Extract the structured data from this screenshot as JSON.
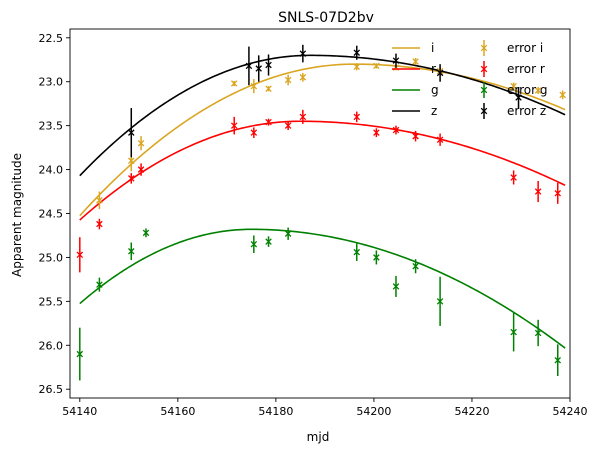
{
  "chart_data": {
    "type": "scatter",
    "title": "SNLS-07D2bv",
    "xlabel": "mjd",
    "ylabel": "Apparent magnitude",
    "xlim": [
      54138,
      54240
    ],
    "ylim": [
      26.6,
      22.4
    ],
    "y_inverted": true,
    "x_ticks": [
      54140,
      54160,
      54180,
      54200,
      54220,
      54240
    ],
    "y_ticks": [
      22.5,
      23.0,
      23.5,
      24.0,
      24.5,
      25.0,
      25.5,
      26.0,
      26.5
    ],
    "grid": false,
    "legend_position": "top-right",
    "legend_columns": 2,
    "fit_curves": [
      {
        "name": "i",
        "color": "#daa520",
        "xmin": 54140,
        "xmax": 54239,
        "peak_x": 54196,
        "peak_y": 22.8,
        "rise_k": 0.00055,
        "fall_k": 0.00028
      },
      {
        "name": "r",
        "color": "#ff0000",
        "xmin": 54140,
        "xmax": 54239,
        "peak_x": 54185,
        "peak_y": 23.45,
        "rise_k": 0.000555,
        "fall_k": 0.00025
      },
      {
        "name": "g",
        "color": "#008000",
        "xmin": 54140,
        "xmax": 54239,
        "peak_x": 54175,
        "peak_y": 24.68,
        "rise_k": 0.00069,
        "fall_k": 0.00033
      },
      {
        "name": "z",
        "color": "#000000",
        "xmin": 54140,
        "xmax": 54239,
        "peak_x": 54187,
        "peak_y": 22.7,
        "rise_k": 0.00062,
        "fall_k": 0.00025
      }
    ],
    "series": [
      {
        "name": "error i",
        "color": "#daa520",
        "points": [
          {
            "x": 54144,
            "y": 24.35,
            "err": 0.1
          },
          {
            "x": 54150.5,
            "y": 23.9,
            "err": 0.12
          },
          {
            "x": 54152.5,
            "y": 23.7,
            "err": 0.08
          },
          {
            "x": 54171.5,
            "y": 23.02,
            "err": 0.03
          },
          {
            "x": 54175.5,
            "y": 23.05,
            "err": 0.08
          },
          {
            "x": 54178.5,
            "y": 23.08,
            "err": 0.03
          },
          {
            "x": 54182.5,
            "y": 22.98,
            "err": 0.06
          },
          {
            "x": 54185.5,
            "y": 22.95,
            "err": 0.05
          },
          {
            "x": 54196.5,
            "y": 22.83,
            "err": 0.04
          },
          {
            "x": 54200.5,
            "y": 22.82,
            "err": 0.03
          },
          {
            "x": 54204.5,
            "y": 22.84,
            "err": 0.03
          },
          {
            "x": 54208.5,
            "y": 22.77,
            "err": 0.04
          },
          {
            "x": 54213.5,
            "y": 22.88,
            "err": 0.05
          },
          {
            "x": 54228.5,
            "y": 23.05,
            "err": 0.04
          },
          {
            "x": 54233.5,
            "y": 23.1,
            "err": 0.04
          },
          {
            "x": 54238.5,
            "y": 23.15,
            "err": 0.05
          }
        ]
      },
      {
        "name": "error r",
        "color": "#ff0000",
        "points": [
          {
            "x": 54140,
            "y": 24.97,
            "err": 0.2
          },
          {
            "x": 54144,
            "y": 24.62,
            "err": 0.06
          },
          {
            "x": 54150.5,
            "y": 24.1,
            "err": 0.06
          },
          {
            "x": 54152.5,
            "y": 24.0,
            "err": 0.07
          },
          {
            "x": 54171.5,
            "y": 23.5,
            "err": 0.1
          },
          {
            "x": 54175.5,
            "y": 23.58,
            "err": 0.06
          },
          {
            "x": 54178.5,
            "y": 23.46,
            "err": 0.04
          },
          {
            "x": 54182.5,
            "y": 23.5,
            "err": 0.05
          },
          {
            "x": 54185.5,
            "y": 23.4,
            "err": 0.08
          },
          {
            "x": 54196.5,
            "y": 23.4,
            "err": 0.06
          },
          {
            "x": 54200.5,
            "y": 23.58,
            "err": 0.05
          },
          {
            "x": 54204.5,
            "y": 23.55,
            "err": 0.05
          },
          {
            "x": 54208.5,
            "y": 23.62,
            "err": 0.06
          },
          {
            "x": 54213.5,
            "y": 23.66,
            "err": 0.07
          },
          {
            "x": 54228.5,
            "y": 24.09,
            "err": 0.08
          },
          {
            "x": 54233.5,
            "y": 24.25,
            "err": 0.12
          },
          {
            "x": 54237.5,
            "y": 24.27,
            "err": 0.12
          }
        ]
      },
      {
        "name": "error g",
        "color": "#008000",
        "points": [
          {
            "x": 54140,
            "y": 26.1,
            "err": 0.3
          },
          {
            "x": 54144,
            "y": 25.31,
            "err": 0.08
          },
          {
            "x": 54150.5,
            "y": 24.93,
            "err": 0.1
          },
          {
            "x": 54153.5,
            "y": 24.72,
            "err": 0.05
          },
          {
            "x": 54175.5,
            "y": 24.85,
            "err": 0.1
          },
          {
            "x": 54178.5,
            "y": 24.82,
            "err": 0.06
          },
          {
            "x": 54182.5,
            "y": 24.73,
            "err": 0.07
          },
          {
            "x": 54196.5,
            "y": 24.94,
            "err": 0.1
          },
          {
            "x": 54200.5,
            "y": 25.0,
            "err": 0.08
          },
          {
            "x": 54204.5,
            "y": 25.33,
            "err": 0.12
          },
          {
            "x": 54208.5,
            "y": 25.1,
            "err": 0.08
          },
          {
            "x": 54213.5,
            "y": 25.5,
            "err": 0.28
          },
          {
            "x": 54228.5,
            "y": 25.85,
            "err": 0.22
          },
          {
            "x": 54233.5,
            "y": 25.86,
            "err": 0.15
          },
          {
            "x": 54237.5,
            "y": 26.17,
            "err": 0.18
          }
        ]
      },
      {
        "name": "error z",
        "color": "#000000",
        "points": [
          {
            "x": 54150.5,
            "y": 23.58,
            "err": 0.28
          },
          {
            "x": 54174.5,
            "y": 22.82,
            "err": 0.22
          },
          {
            "x": 54176.5,
            "y": 22.85,
            "err": 0.15
          },
          {
            "x": 54178.5,
            "y": 22.81,
            "err": 0.12
          },
          {
            "x": 54185.5,
            "y": 22.68,
            "err": 0.1
          },
          {
            "x": 54196.5,
            "y": 22.67,
            "err": 0.08
          },
          {
            "x": 54204.5,
            "y": 22.76,
            "err": 0.08
          },
          {
            "x": 54213.5,
            "y": 22.9,
            "err": 0.1
          },
          {
            "x": 54229.5,
            "y": 23.18,
            "err": 0.12
          }
        ]
      }
    ],
    "legend": [
      {
        "label": "i",
        "kind": "line",
        "color": "#daa520"
      },
      {
        "label": "r",
        "kind": "line",
        "color": "#ff0000"
      },
      {
        "label": "g",
        "kind": "line",
        "color": "#008000"
      },
      {
        "label": "z",
        "kind": "line",
        "color": "#000000"
      },
      {
        "label": "error i",
        "kind": "marker",
        "color": "#daa520"
      },
      {
        "label": "error r",
        "kind": "marker",
        "color": "#ff0000"
      },
      {
        "label": "error g",
        "kind": "marker",
        "color": "#008000"
      },
      {
        "label": "error z",
        "kind": "marker",
        "color": "#000000"
      }
    ]
  }
}
